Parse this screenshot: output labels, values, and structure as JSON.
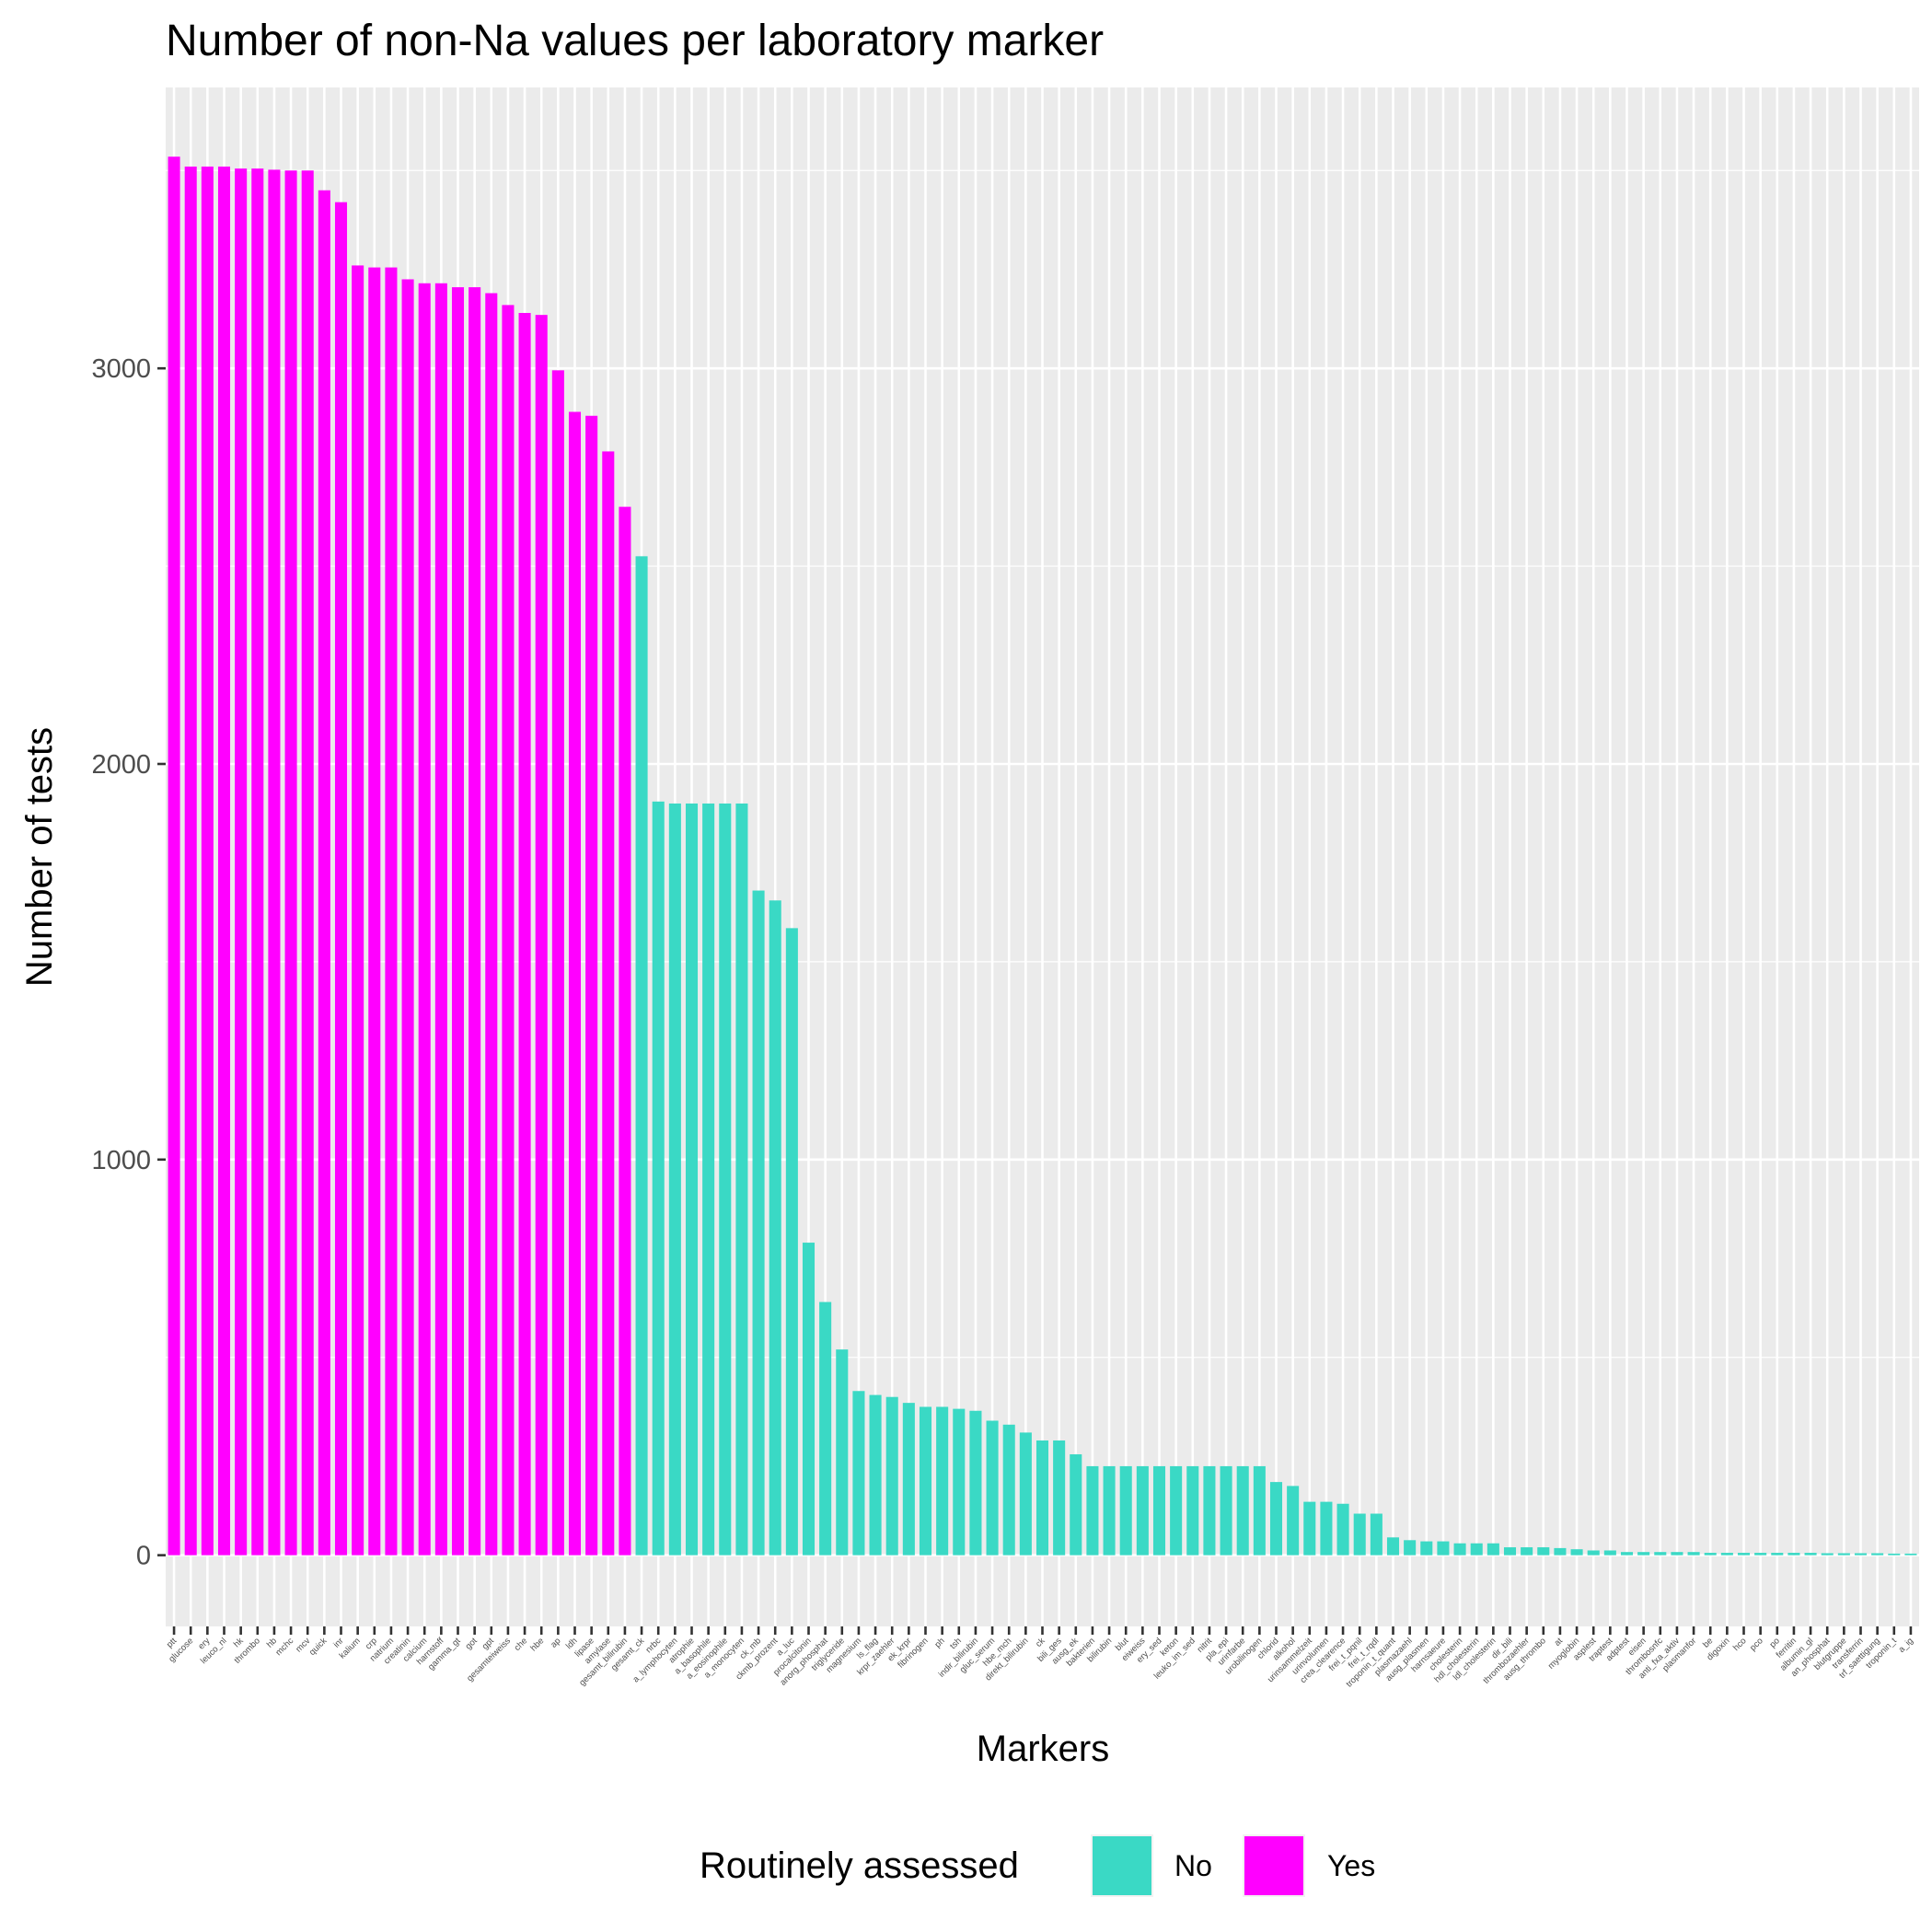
{
  "chart_data": {
    "type": "bar",
    "title": "Number of non-Na values per laboratory marker",
    "xlabel": "Markers",
    "ylabel": "Number of tests",
    "ylim": [
      -180,
      3710
    ],
    "yticks": [
      0,
      1000,
      2000,
      3000
    ],
    "grid": true,
    "legend": {
      "title": "Routinely assessed",
      "placement": "bottom",
      "entries": [
        {
          "key": "No",
          "label": "No",
          "color": "#3ad9c5"
        },
        {
          "key": "Yes",
          "label": "Yes",
          "color": "#ff00ff"
        }
      ]
    },
    "categories": [
      "ptt",
      "glucose",
      "ery",
      "leuco_nl",
      "hk",
      "thrombo",
      "hb",
      "mchc",
      "mcv",
      "quick",
      "inr",
      "kalium",
      "crp",
      "natrium",
      "creatinin",
      "calcium",
      "harnstoff",
      "gamma_gt",
      "got",
      "gpt",
      "gesamteiweiss",
      "che",
      "hbe",
      "ap",
      "ldh",
      "lipase",
      "amylase",
      "gesamt_bilirubin",
      "gesamt_ck",
      "nrbc",
      "a_lymphocyten",
      "atrophie",
      "a_basophile",
      "a_eosinophile",
      "a_monocyten",
      "ck_mb",
      "ckmb_prozent",
      "a_luc",
      "procalcitonin",
      "anorg_phosphat",
      "triglyceride",
      "magnesium",
      "ls_flag",
      "krpr_zaehler",
      "ek_krpr",
      "fibrinogen",
      "ph",
      "tsh",
      "indir_bilirubin",
      "gluc_serum",
      "hbe_mch",
      "direkt_bilirubin",
      "ck",
      "bili_ges",
      "ausg_ek",
      "bakterien",
      "bilirubin",
      "blut",
      "eiweiss",
      "ery_sed",
      "keton",
      "leuko_im_sed",
      "nitrit",
      "pla_epi",
      "urinfarbe",
      "urobilinogen",
      "chlorid",
      "alkohol",
      "urinsammelzeit",
      "urinvolumen",
      "crea_clearence",
      "frei_t_pqnil",
      "frei_t_rqdl",
      "troponin_t_quant",
      "plasmazaehl",
      "ausg_plasmen",
      "harnsaeure",
      "cholesterin",
      "hdl_cholesterin",
      "ldl_cholesterin",
      "dir_bili",
      "thrombozaehler",
      "ausg_thrombo",
      "at",
      "myoglobin",
      "asplest",
      "traptest",
      "adptest",
      "eisen",
      "thrombosnfc",
      "anti_fxa_aktiv",
      "plasmanfor",
      "be",
      "digoxin",
      "hco",
      "pco",
      "po",
      "ferritin",
      "albumin_gl",
      "an_phosphat",
      "blutgruppe",
      "transferrin",
      "trf_saettigung",
      "troponin_t",
      "a_ig"
    ],
    "values": [
      3535,
      3510,
      3510,
      3510,
      3505,
      3505,
      3502,
      3500,
      3500,
      3450,
      3420,
      3260,
      3255,
      3255,
      3225,
      3215,
      3215,
      3205,
      3205,
      3190,
      3160,
      3140,
      3135,
      2995,
      2890,
      2880,
      2790,
      2650,
      2525,
      1905,
      1900,
      1900,
      1900,
      1900,
      1900,
      1680,
      1655,
      1585,
      790,
      640,
      520,
      415,
      405,
      400,
      385,
      375,
      375,
      370,
      365,
      340,
      330,
      310,
      290,
      290,
      255,
      225,
      225,
      225,
      225,
      225,
      225,
      225,
      225,
      225,
      225,
      225,
      185,
      175,
      135,
      135,
      130,
      105,
      105,
      45,
      38,
      35,
      35,
      30,
      30,
      30,
      20,
      20,
      20,
      18,
      15,
      12,
      12,
      8,
      8,
      8,
      8,
      8,
      6,
      6,
      6,
      6,
      6,
      6,
      6,
      5,
      5,
      5,
      5,
      4,
      4
    ],
    "routine": [
      "Yes",
      "Yes",
      "Yes",
      "Yes",
      "Yes",
      "Yes",
      "Yes",
      "Yes",
      "Yes",
      "Yes",
      "Yes",
      "Yes",
      "Yes",
      "Yes",
      "Yes",
      "Yes",
      "Yes",
      "Yes",
      "Yes",
      "Yes",
      "Yes",
      "Yes",
      "Yes",
      "Yes",
      "Yes",
      "Yes",
      "Yes",
      "Yes",
      "No",
      "No",
      "No",
      "No",
      "No",
      "No",
      "No",
      "No",
      "No",
      "No",
      "No",
      "No",
      "No",
      "No",
      "No",
      "No",
      "No",
      "No",
      "No",
      "No",
      "No",
      "No",
      "No",
      "No",
      "No",
      "No",
      "No",
      "No",
      "No",
      "No",
      "No",
      "No",
      "No",
      "No",
      "No",
      "No",
      "No",
      "No",
      "No",
      "No",
      "No",
      "No",
      "No",
      "No",
      "No",
      "No",
      "No",
      "No",
      "No",
      "No",
      "No",
      "No",
      "No",
      "No",
      "No",
      "No",
      "No",
      "No",
      "No",
      "No",
      "No",
      "No",
      "No",
      "No",
      "No",
      "No",
      "No",
      "No",
      "No",
      "No",
      "No",
      "No",
      "No",
      "No",
      "No",
      "No",
      "No"
    ]
  }
}
